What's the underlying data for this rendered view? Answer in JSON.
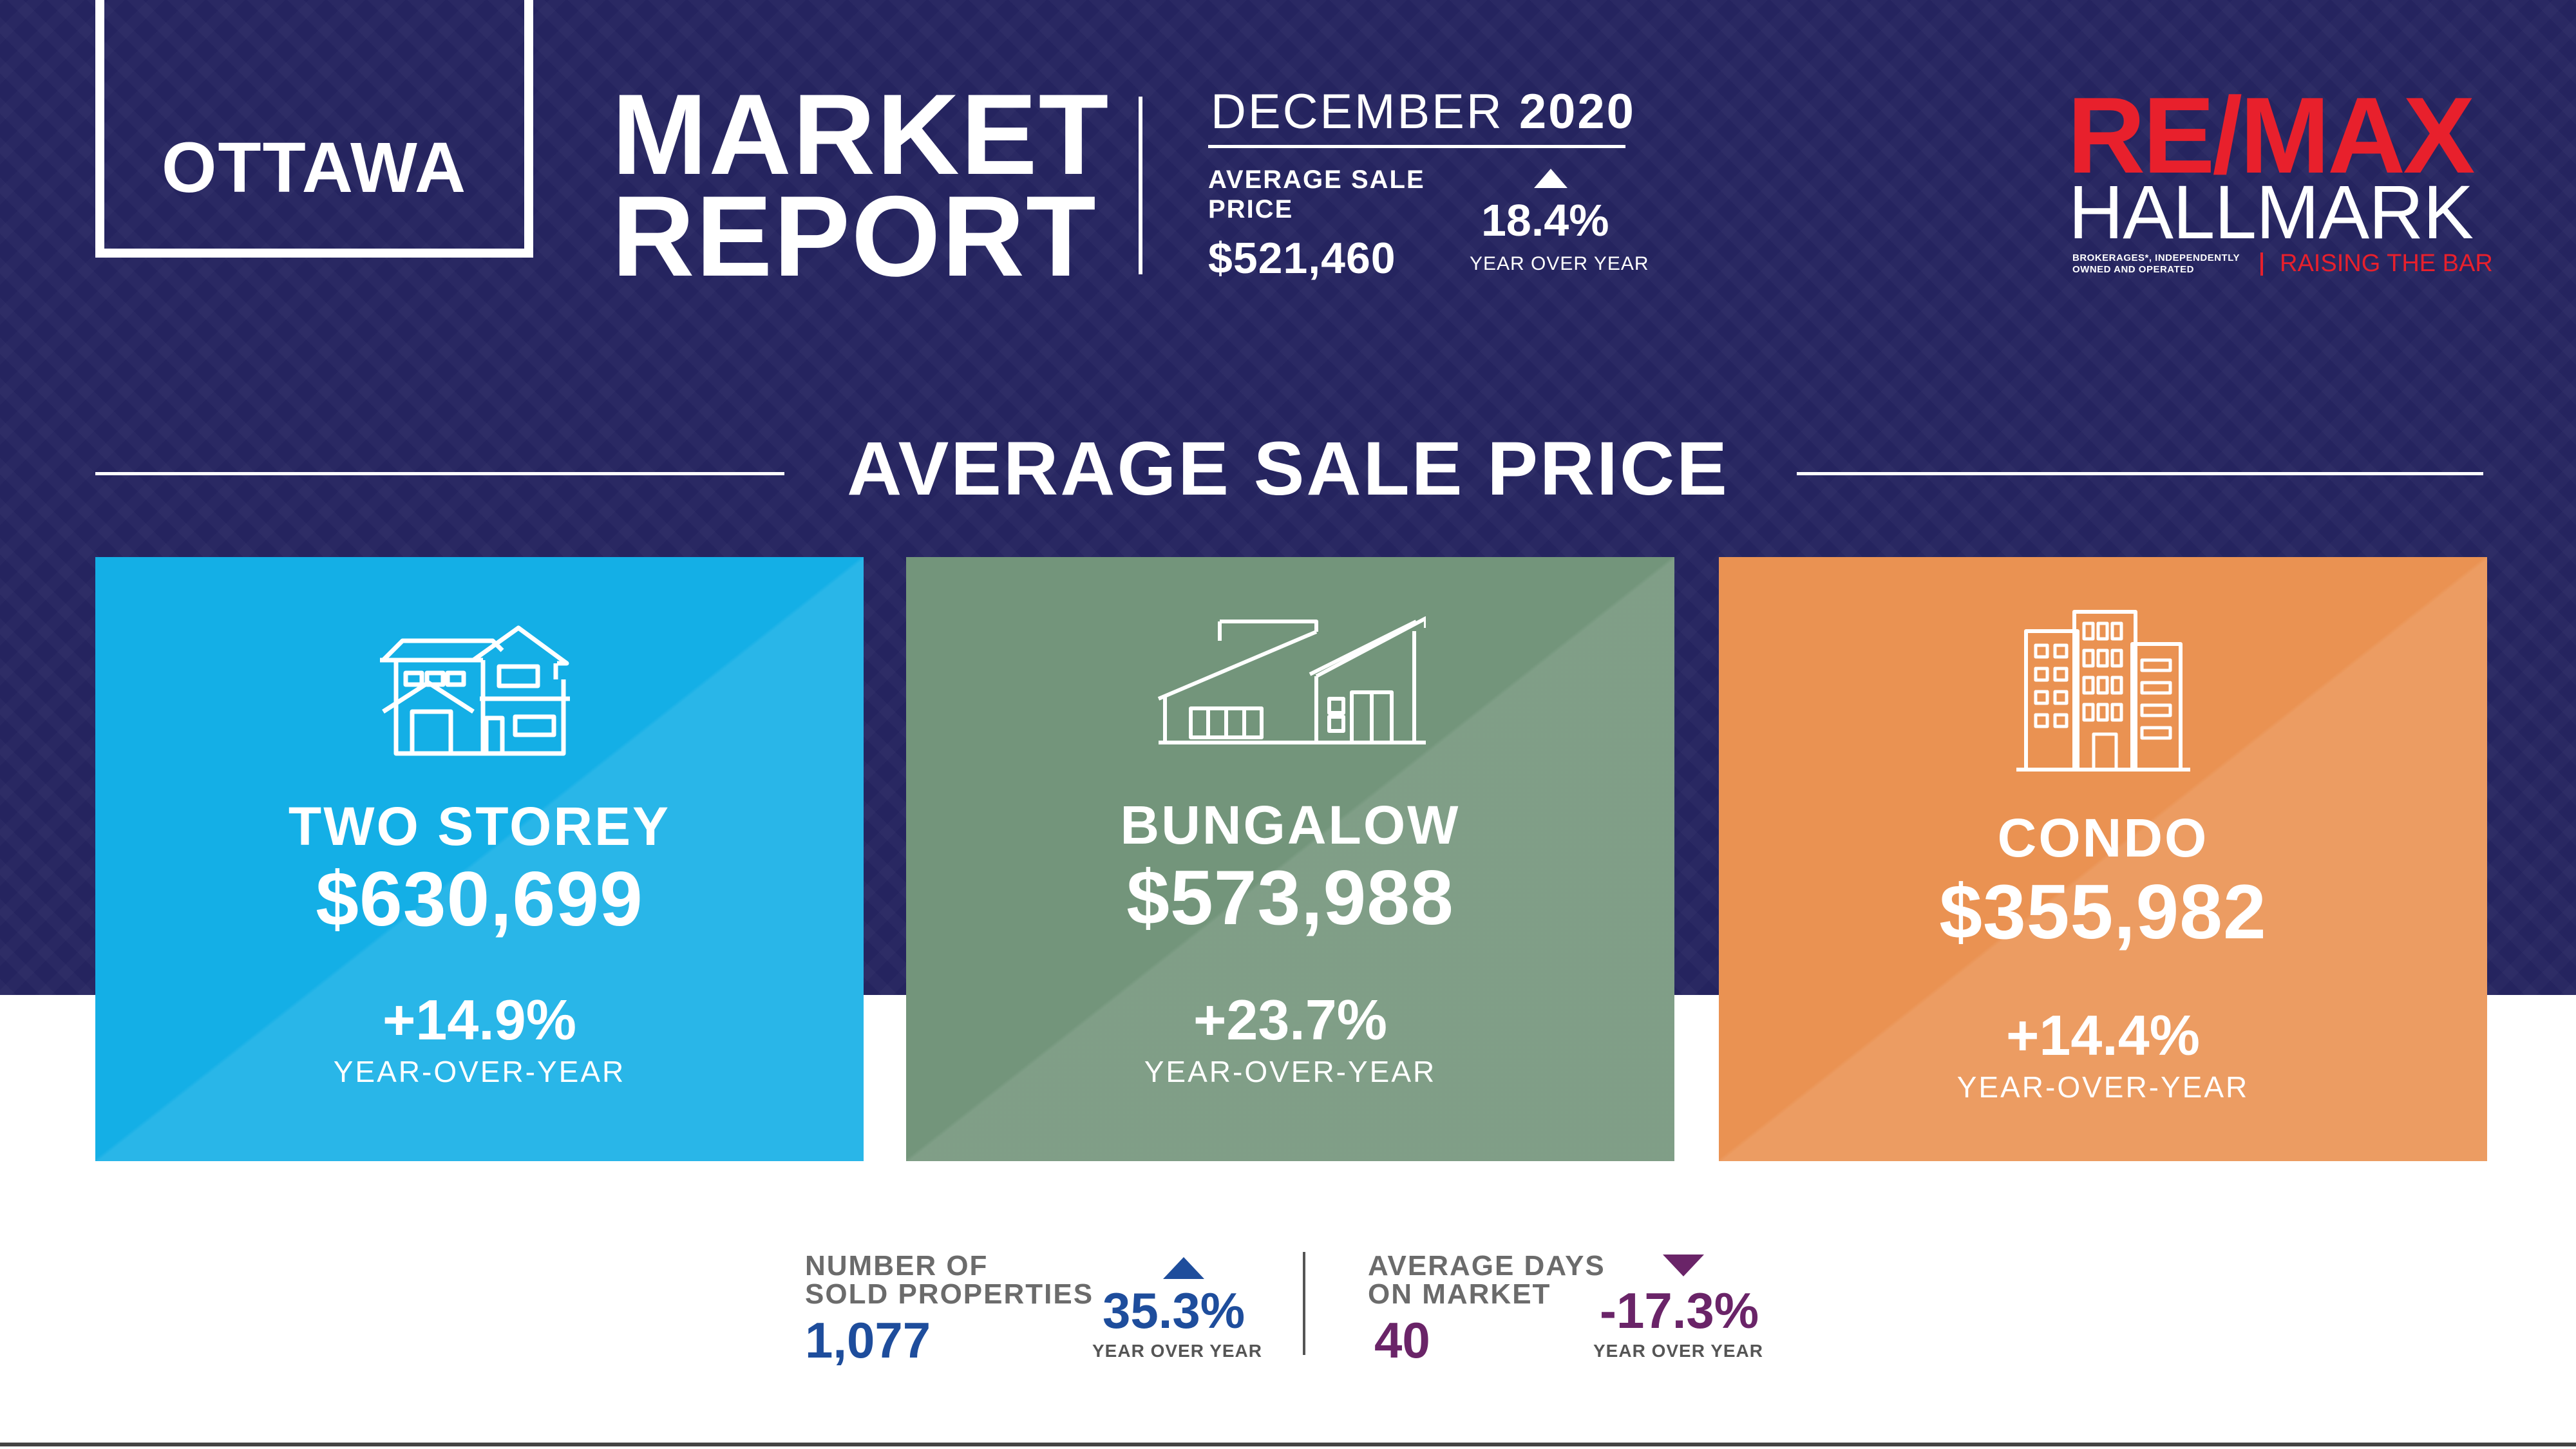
{
  "header": {
    "city": "OTTAWA",
    "title_line1": "MARKET",
    "title_line2": "REPORT",
    "month": "DECEMBER",
    "year": "2020",
    "avg_sale_label": "AVERAGE SALE PRICE",
    "avg_sale_value": "$521,460",
    "avg_sale_change": "18.4%",
    "avg_sale_change_caption": "YEAR OVER YEAR",
    "avg_sale_trend": "up"
  },
  "logo": {
    "brand": "RE/MAX",
    "name": "HALLMARK",
    "disclaimer": "BROKERAGES*, INDEPENDENTLY OWNED AND OPERATED",
    "tagline": "RAISING THE BAR"
  },
  "section": {
    "title": "AVERAGE SALE PRICE"
  },
  "cards": [
    {
      "icon": "two-storey-house-icon",
      "name": "TWO STOREY",
      "price": "$630,699",
      "change": "+14.9%",
      "caption": "YEAR-OVER-YEAR",
      "color": "#14afe6"
    },
    {
      "icon": "bungalow-icon",
      "name": "BUNGALOW",
      "price": "$573,988",
      "change": "+23.7%",
      "caption": "YEAR-OVER-YEAR",
      "color": "#73957b"
    },
    {
      "icon": "condo-building-icon",
      "name": "CONDO",
      "price": "$355,982",
      "change": "+14.4%",
      "caption": "YEAR-OVER-YEAR",
      "color": "#ea9252"
    }
  ],
  "stats": [
    {
      "label_line1": "NUMBER OF",
      "label_line2": "SOLD PROPERTIES",
      "value": "1,077",
      "change": "35.3%",
      "caption": "YEAR OVER YEAR",
      "trend": "up",
      "color": "#1e4d9c"
    },
    {
      "label_line1": "AVERAGE DAYS",
      "label_line2": "ON MARKET",
      "value": "40",
      "change": "-17.3%",
      "caption": "YEAR OVER YEAR",
      "trend": "down",
      "color": "#6a2468"
    }
  ],
  "colors": {
    "navy_background": "#25245f",
    "remax_red": "#e8202c"
  }
}
